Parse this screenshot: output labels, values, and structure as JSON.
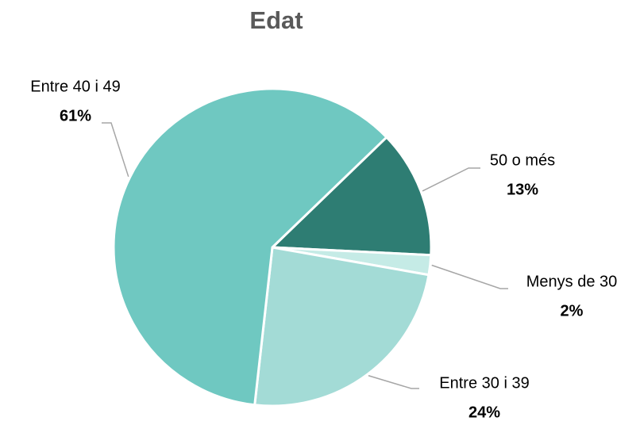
{
  "chart_data": {
    "type": "pie",
    "title": "Edat",
    "categories": [
      "50 o més",
      "Menys de 30",
      "Entre 30 i 39",
      "Entre 40 i 49"
    ],
    "values": [
      13,
      2,
      24,
      61
    ],
    "value_labels": [
      "13%",
      "2%",
      "24%",
      "61%"
    ],
    "colors": [
      "#2e7d73",
      "#c5ebe6",
      "#a3dbd6",
      "#6fc8c1"
    ]
  }
}
